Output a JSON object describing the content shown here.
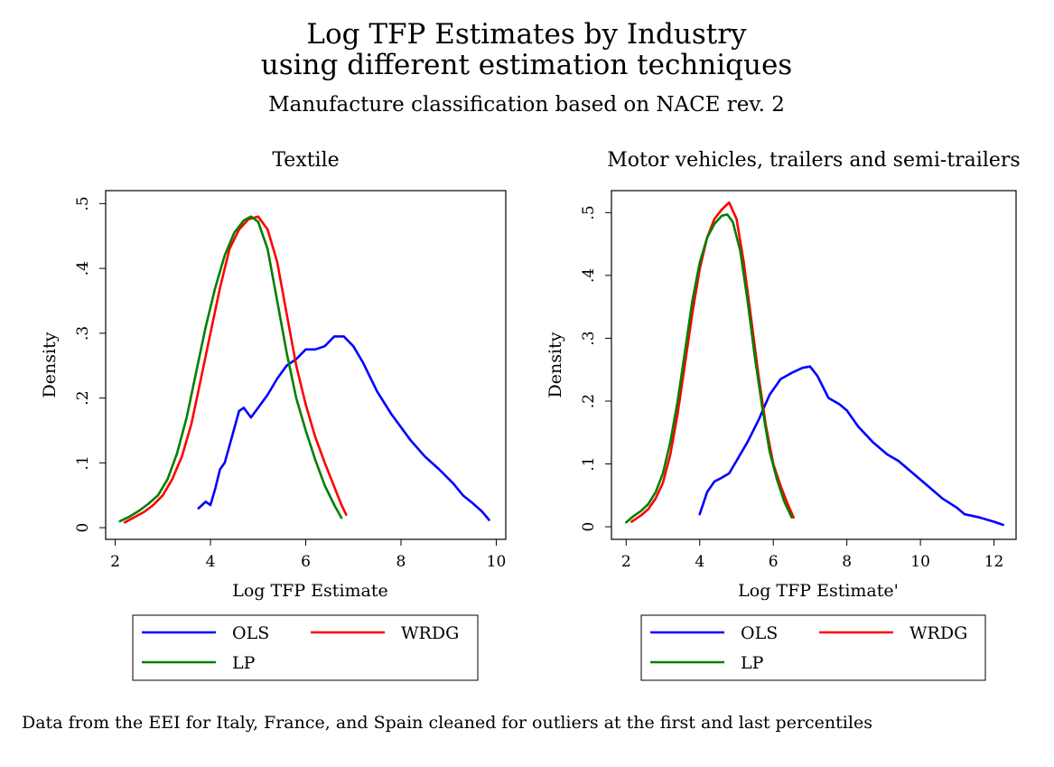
{
  "figure": {
    "title_line1": "Log TFP Estimates by Industry",
    "title_line2": "using different estimation techniques",
    "subtitle": "Manufacture classification based on NACE rev. 2",
    "note": "Data from the EEI for Italy, France, and Spain cleaned for outliers at the first and last percentiles"
  },
  "chart_data": [
    {
      "type": "line",
      "title": "Textile",
      "xlabel": "Log TFP Estimate",
      "ylabel": "Density",
      "xlim": [
        1.8,
        10.2
      ],
      "ylim": [
        -0.018,
        0.52
      ],
      "xticks": [
        2,
        4,
        6,
        8,
        10
      ],
      "xtick_labels": [
        "2",
        "4",
        "6",
        "8",
        "10"
      ],
      "yticks": [
        0,
        0.1,
        0.2,
        0.3,
        0.4,
        0.5
      ],
      "ytick_labels": [
        "0",
        ".1",
        ".2",
        ".3",
        ".4",
        ".5"
      ],
      "grid": false,
      "legend_position": "bottom",
      "series": [
        {
          "name": "OLS",
          "color": "#0000ff",
          "points": [
            [
              3.75,
              0.03
            ],
            [
              3.9,
              0.04
            ],
            [
              4.0,
              0.035
            ],
            [
              4.1,
              0.06
            ],
            [
              4.2,
              0.09
            ],
            [
              4.3,
              0.1
            ],
            [
              4.45,
              0.14
            ],
            [
              4.6,
              0.18
            ],
            [
              4.7,
              0.185
            ],
            [
              4.85,
              0.17
            ],
            [
              5.0,
              0.185
            ],
            [
              5.2,
              0.205
            ],
            [
              5.4,
              0.23
            ],
            [
              5.6,
              0.25
            ],
            [
              5.8,
              0.26
            ],
            [
              6.0,
              0.275
            ],
            [
              6.2,
              0.275
            ],
            [
              6.4,
              0.28
            ],
            [
              6.6,
              0.295
            ],
            [
              6.8,
              0.295
            ],
            [
              7.0,
              0.28
            ],
            [
              7.2,
              0.255
            ],
            [
              7.5,
              0.21
            ],
            [
              7.8,
              0.175
            ],
            [
              8.2,
              0.135
            ],
            [
              8.5,
              0.11
            ],
            [
              8.8,
              0.09
            ],
            [
              9.1,
              0.068
            ],
            [
              9.3,
              0.05
            ],
            [
              9.5,
              0.038
            ],
            [
              9.7,
              0.025
            ],
            [
              9.85,
              0.012
            ]
          ]
        },
        {
          "name": "WRDG",
          "color": "#ff0000",
          "points": [
            [
              2.2,
              0.008
            ],
            [
              2.4,
              0.016
            ],
            [
              2.6,
              0.024
            ],
            [
              2.8,
              0.035
            ],
            [
              3.0,
              0.05
            ],
            [
              3.2,
              0.075
            ],
            [
              3.4,
              0.11
            ],
            [
              3.6,
              0.16
            ],
            [
              3.8,
              0.23
            ],
            [
              4.0,
              0.3
            ],
            [
              4.2,
              0.37
            ],
            [
              4.4,
              0.43
            ],
            [
              4.6,
              0.46
            ],
            [
              4.8,
              0.476
            ],
            [
              5.0,
              0.48
            ],
            [
              5.2,
              0.46
            ],
            [
              5.4,
              0.41
            ],
            [
              5.6,
              0.33
            ],
            [
              5.8,
              0.25
            ],
            [
              6.0,
              0.19
            ],
            [
              6.2,
              0.14
            ],
            [
              6.4,
              0.1
            ],
            [
              6.6,
              0.063
            ],
            [
              6.75,
              0.035
            ],
            [
              6.85,
              0.02
            ]
          ]
        },
        {
          "name": "LP",
          "color": "#008000",
          "points": [
            [
              2.1,
              0.01
            ],
            [
              2.3,
              0.017
            ],
            [
              2.5,
              0.026
            ],
            [
              2.7,
              0.037
            ],
            [
              2.9,
              0.05
            ],
            [
              3.1,
              0.075
            ],
            [
              3.3,
              0.115
            ],
            [
              3.5,
              0.17
            ],
            [
              3.7,
              0.24
            ],
            [
              3.9,
              0.31
            ],
            [
              4.1,
              0.37
            ],
            [
              4.3,
              0.42
            ],
            [
              4.5,
              0.455
            ],
            [
              4.7,
              0.474
            ],
            [
              4.85,
              0.48
            ],
            [
              5.0,
              0.472
            ],
            [
              5.2,
              0.43
            ],
            [
              5.4,
              0.35
            ],
            [
              5.6,
              0.27
            ],
            [
              5.8,
              0.2
            ],
            [
              6.0,
              0.15
            ],
            [
              6.2,
              0.105
            ],
            [
              6.4,
              0.065
            ],
            [
              6.6,
              0.035
            ],
            [
              6.75,
              0.015
            ]
          ]
        }
      ]
    },
    {
      "type": "line",
      "title": "Motor vehicles, trailers and semi-trailers",
      "xlabel": "Log TFP Estimate'",
      "ylabel": "Density",
      "xlim": [
        1.6,
        12.6
      ],
      "ylim": [
        -0.02,
        0.535
      ],
      "xticks": [
        2,
        4,
        6,
        8,
        10,
        12
      ],
      "xtick_labels": [
        "2",
        "4",
        "6",
        "8",
        "10",
        "12"
      ],
      "yticks": [
        0,
        0.1,
        0.2,
        0.3,
        0.4,
        0.5
      ],
      "ytick_labels": [
        "0",
        ".1",
        ".2",
        ".3",
        ".4",
        ".5"
      ],
      "grid": false,
      "legend_position": "bottom",
      "series": [
        {
          "name": "OLS",
          "color": "#0000ff",
          "points": [
            [
              4.0,
              0.02
            ],
            [
              4.2,
              0.055
            ],
            [
              4.4,
              0.072
            ],
            [
              4.6,
              0.078
            ],
            [
              4.8,
              0.085
            ],
            [
              5.0,
              0.105
            ],
            [
              5.3,
              0.135
            ],
            [
              5.6,
              0.17
            ],
            [
              5.9,
              0.21
            ],
            [
              6.2,
              0.235
            ],
            [
              6.5,
              0.245
            ],
            [
              6.8,
              0.253
            ],
            [
              7.0,
              0.255
            ],
            [
              7.2,
              0.24
            ],
            [
              7.5,
              0.205
            ],
            [
              7.8,
              0.195
            ],
            [
              8.0,
              0.185
            ],
            [
              8.3,
              0.16
            ],
            [
              8.7,
              0.135
            ],
            [
              9.1,
              0.115
            ],
            [
              9.4,
              0.105
            ],
            [
              9.8,
              0.085
            ],
            [
              10.2,
              0.065
            ],
            [
              10.6,
              0.045
            ],
            [
              11.0,
              0.03
            ],
            [
              11.2,
              0.02
            ],
            [
              11.6,
              0.015
            ],
            [
              12.0,
              0.008
            ],
            [
              12.25,
              0.003
            ]
          ]
        },
        {
          "name": "WRDG",
          "color": "#ff0000",
          "points": [
            [
              2.15,
              0.008
            ],
            [
              2.4,
              0.018
            ],
            [
              2.6,
              0.028
            ],
            [
              2.8,
              0.045
            ],
            [
              3.0,
              0.07
            ],
            [
              3.2,
              0.115
            ],
            [
              3.4,
              0.18
            ],
            [
              3.6,
              0.26
            ],
            [
              3.8,
              0.34
            ],
            [
              4.0,
              0.41
            ],
            [
              4.2,
              0.46
            ],
            [
              4.4,
              0.49
            ],
            [
              4.6,
              0.505
            ],
            [
              4.8,
              0.516
            ],
            [
              5.0,
              0.49
            ],
            [
              5.2,
              0.42
            ],
            [
              5.4,
              0.33
            ],
            [
              5.6,
              0.24
            ],
            [
              5.8,
              0.16
            ],
            [
              6.0,
              0.1
            ],
            [
              6.2,
              0.065
            ],
            [
              6.4,
              0.035
            ],
            [
              6.55,
              0.015
            ]
          ]
        },
        {
          "name": "LP",
          "color": "#008000",
          "points": [
            [
              2.0,
              0.007
            ],
            [
              2.2,
              0.017
            ],
            [
              2.4,
              0.025
            ],
            [
              2.6,
              0.036
            ],
            [
              2.8,
              0.055
            ],
            [
              3.0,
              0.085
            ],
            [
              3.2,
              0.135
            ],
            [
              3.4,
              0.2
            ],
            [
              3.6,
              0.28
            ],
            [
              3.8,
              0.36
            ],
            [
              4.0,
              0.42
            ],
            [
              4.2,
              0.46
            ],
            [
              4.4,
              0.482
            ],
            [
              4.6,
              0.495
            ],
            [
              4.75,
              0.497
            ],
            [
              4.9,
              0.485
            ],
            [
              5.1,
              0.44
            ],
            [
              5.3,
              0.36
            ],
            [
              5.5,
              0.27
            ],
            [
              5.7,
              0.19
            ],
            [
              5.9,
              0.12
            ],
            [
              6.1,
              0.075
            ],
            [
              6.3,
              0.04
            ],
            [
              6.5,
              0.015
            ]
          ]
        }
      ]
    }
  ]
}
